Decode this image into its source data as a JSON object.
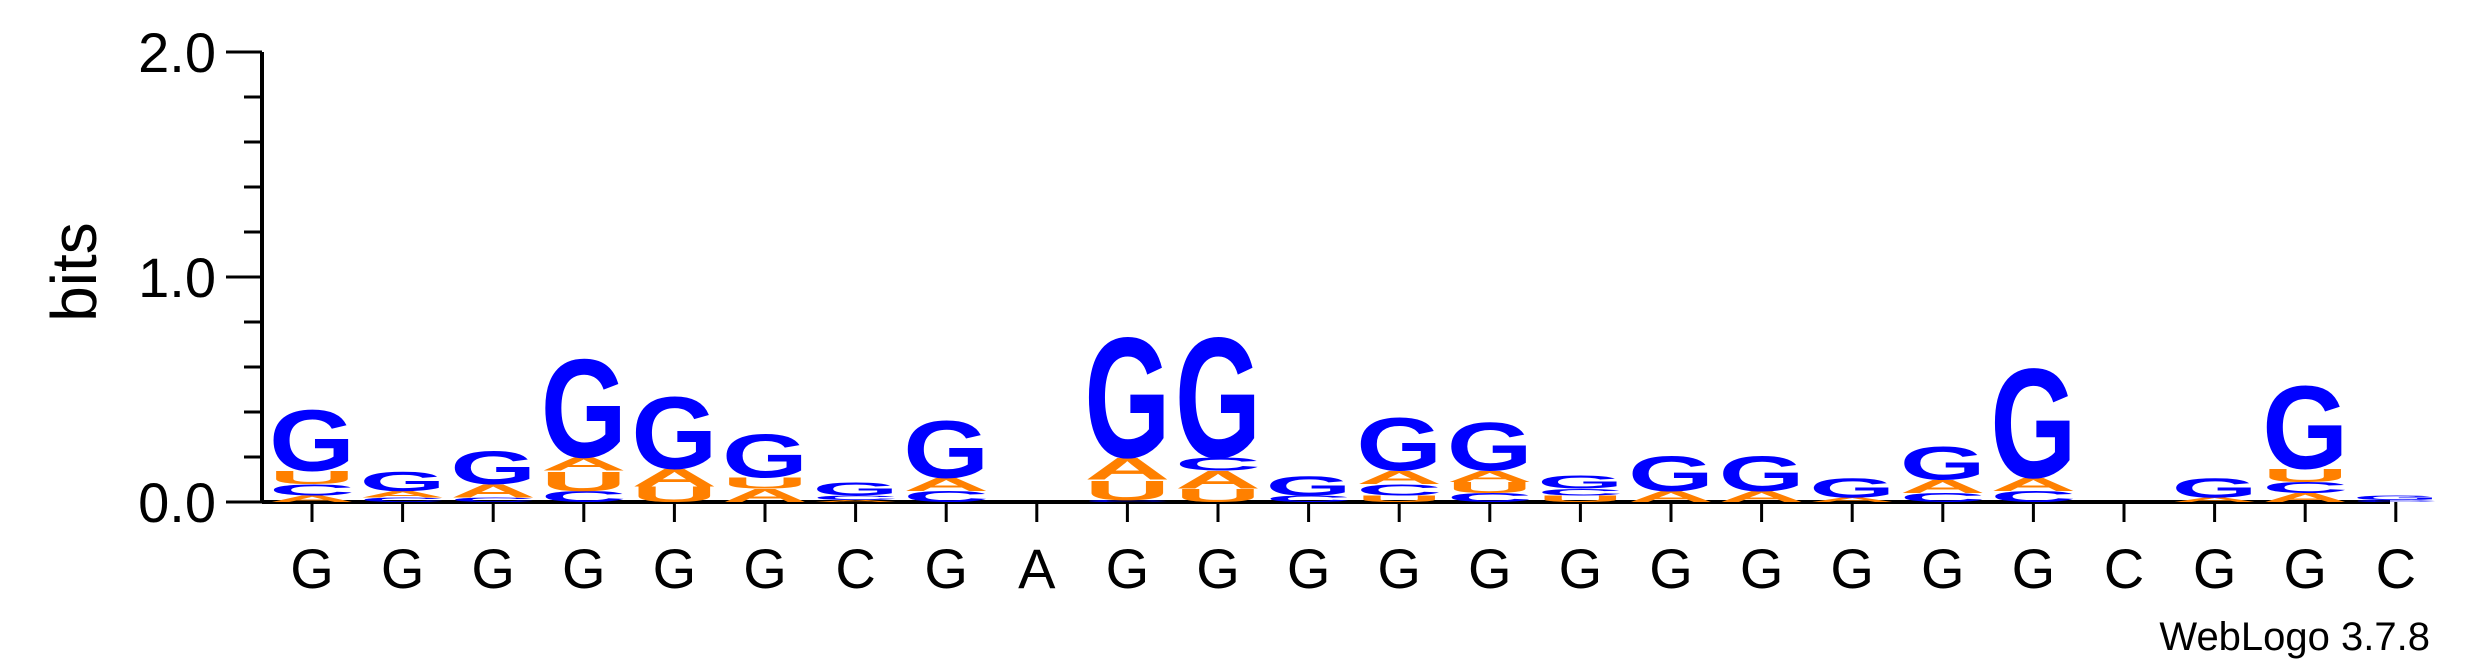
{
  "chart_data": {
    "type": "sequence-logo",
    "ylabel": "bits",
    "ylim": [
      0,
      2.0
    ],
    "yticks": [
      "0.0",
      "1.0",
      "2.0"
    ],
    "xticks": [
      "G",
      "G",
      "G",
      "G",
      "G",
      "G",
      "C",
      "G",
      "A",
      "G",
      "G",
      "G",
      "G",
      "G",
      "G",
      "G",
      "G",
      "G",
      "G",
      "G",
      "C",
      "G",
      "G",
      "C"
    ],
    "colors": {
      "G": "#0000ff",
      "U": "#ff8000",
      "A": "#ff8000",
      "C": "#0000ff"
    },
    "columns": [
      [
        [
          "A",
          0.03
        ],
        [
          "C",
          0.05
        ],
        [
          "U",
          0.06
        ],
        [
          "G",
          0.28
        ]
      ],
      [
        [
          "C",
          0.02
        ],
        [
          "A",
          0.03
        ],
        [
          "G",
          0.09
        ]
      ],
      [
        [
          "C",
          0.02
        ],
        [
          "A",
          0.06
        ],
        [
          "G",
          0.15
        ]
      ],
      [
        [
          "C",
          0.05
        ],
        [
          "U",
          0.09
        ],
        [
          "A",
          0.06
        ],
        [
          "G",
          0.45
        ]
      ],
      [
        [
          "U",
          0.07
        ],
        [
          "A",
          0.08
        ],
        [
          "G",
          0.33
        ]
      ],
      [
        [
          "A",
          0.06
        ],
        [
          "U",
          0.05
        ],
        [
          "G",
          0.2
        ]
      ],
      [
        [
          "A",
          0.01
        ],
        [
          "C",
          0.02
        ],
        [
          "G",
          0.06
        ]
      ],
      [
        [
          "C",
          0.05
        ],
        [
          "A",
          0.06
        ],
        [
          "G",
          0.26
        ]
      ],
      [],
      [
        [
          "C",
          0.01
        ],
        [
          "U",
          0.09
        ],
        [
          "A",
          0.1
        ],
        [
          "G",
          0.55
        ]
      ],
      [
        [
          "U",
          0.06
        ],
        [
          "A",
          0.08
        ],
        [
          "C",
          0.06
        ],
        [
          "G",
          0.55
        ]
      ],
      [
        [
          "C",
          0.03
        ],
        [
          "G",
          0.09
        ]
      ],
      [
        [
          "U",
          0.03
        ],
        [
          "C",
          0.05
        ],
        [
          "A",
          0.06
        ],
        [
          "G",
          0.24
        ]
      ],
      [
        [
          "C",
          0.04
        ],
        [
          "U",
          0.05
        ],
        [
          "A",
          0.05
        ],
        [
          "G",
          0.22
        ]
      ],
      [
        [
          "U",
          0.03
        ],
        [
          "C",
          0.03
        ],
        [
          "G",
          0.06
        ]
      ],
      [
        [
          "A",
          0.05
        ],
        [
          "G",
          0.16
        ]
      ],
      [
        [
          "A",
          0.05
        ],
        [
          "G",
          0.16
        ]
      ],
      [
        [
          "A",
          0.02
        ],
        [
          "G",
          0.09
        ]
      ],
      [
        [
          "C",
          0.04
        ],
        [
          "A",
          0.06
        ],
        [
          "G",
          0.15
        ]
      ],
      [
        [
          "C",
          0.05
        ],
        [
          "A",
          0.06
        ],
        [
          "G",
          0.5
        ]
      ],
      [],
      [
        [
          "A",
          0.02
        ],
        [
          "G",
          0.09
        ]
      ],
      [
        [
          "A",
          0.04
        ],
        [
          "C",
          0.05
        ],
        [
          "U",
          0.06
        ],
        [
          "G",
          0.38
        ]
      ],
      [
        [
          "C",
          0.01
        ],
        [
          "G",
          0.02
        ]
      ]
    ]
  },
  "watermark": "WebLogo 3.7.8"
}
